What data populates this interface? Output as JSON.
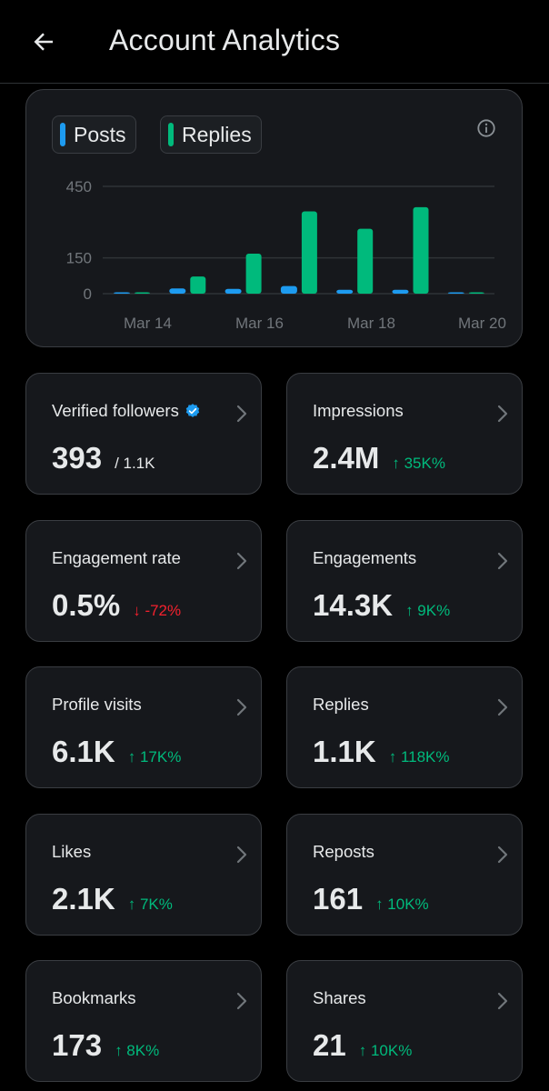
{
  "header": {
    "title": "Account Analytics",
    "back_icon": "arrow-left-icon"
  },
  "chart": {
    "legend": [
      {
        "label": "Posts",
        "color": "#1d9bf0"
      },
      {
        "label": "Replies",
        "color": "#00ba7c"
      }
    ],
    "info_icon": "info-icon"
  },
  "chart_data": {
    "type": "bar",
    "x_tick_labels": [
      "Mar 14",
      "Mar 16",
      "Mar 18",
      "Mar 20"
    ],
    "y_tick_labels": [
      "450",
      "150",
      "0"
    ],
    "y_ticks": [
      450,
      150,
      0
    ],
    "ylim": [
      0,
      450
    ],
    "grid": true,
    "days": [
      {
        "posts": 2,
        "replies": 2
      },
      {
        "posts": 22,
        "replies": 72
      },
      {
        "posts": 20,
        "replies": 168
      },
      {
        "posts": 32,
        "replies": 345
      },
      {
        "posts": 16,
        "replies": 272
      },
      {
        "posts": 16,
        "replies": 363
      },
      {
        "posts": 0,
        "replies": 2
      }
    ],
    "series": [
      {
        "name": "Posts",
        "color": "#1d9bf0",
        "values": [
          2,
          22,
          20,
          32,
          16,
          16,
          0
        ]
      },
      {
        "name": "Replies",
        "color": "#00ba7c",
        "values": [
          2,
          72,
          168,
          345,
          272,
          363,
          2
        ]
      }
    ]
  },
  "stats": [
    {
      "label": "Verified followers",
      "value": "393",
      "sub": "/ 1.1K",
      "verified": true
    },
    {
      "label": "Impressions",
      "value": "2.4M",
      "change": "↑ 35K%",
      "trend": "up"
    },
    {
      "label": "Engagement rate",
      "value": "0.5%",
      "change": "↓ -72%",
      "trend": "down"
    },
    {
      "label": "Engagements",
      "value": "14.3K",
      "change": "↑ 9K%",
      "trend": "up"
    },
    {
      "label": "Profile visits",
      "value": "6.1K",
      "change": "↑ 17K%",
      "trend": "up"
    },
    {
      "label": "Replies",
      "value": "1.1K",
      "change": "↑ 118K%",
      "trend": "up"
    },
    {
      "label": "Likes",
      "value": "2.1K",
      "change": "↑ 7K%",
      "trend": "up"
    },
    {
      "label": "Reposts",
      "value": "161",
      "change": "↑ 10K%",
      "trend": "up"
    },
    {
      "label": "Bookmarks",
      "value": "173",
      "change": "↑ 8K%",
      "trend": "up"
    },
    {
      "label": "Shares",
      "value": "21",
      "change": "↑ 10K%",
      "trend": "up"
    }
  ],
  "colors": {
    "up": "#00ba7c",
    "down": "#f4212e",
    "verified": "#1d9bf0"
  }
}
